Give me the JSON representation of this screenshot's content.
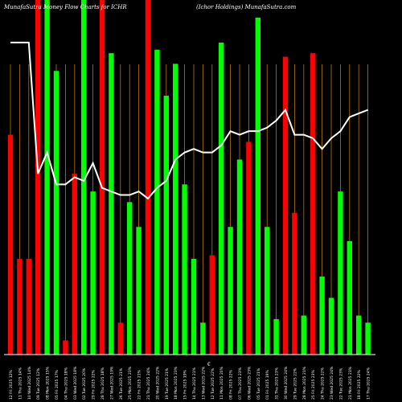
{
  "header": {
    "title": "MunafaSutra  Money Flow  Charts for ICHR",
    "subtitle": "(Ichor Holdings) MunafaSutra.com"
  },
  "chart_data": {
    "type": "bar",
    "title": "MunafaSutra  Money Flow  Charts for ICHR",
    "subtitle": "(Ichor Holdings) MunafaSutra.com",
    "xlabel": "",
    "ylabel": "",
    "ylim": [
      0,
      100
    ],
    "grid": "vertical",
    "colors": {
      "background": "#000000",
      "green": "#00ff00",
      "red": "#ff0000",
      "line": "#ffffff",
      "grid": "#b8760a",
      "baseline": "#ffffff"
    },
    "categories": [
      "12 Fri 2025",
      "11 Thu 2025",
      "10 Wed 2025",
      "09 Tue 2025",
      "08 Mon 2025",
      "05 Fri 2025",
      "04 Thu 2025",
      "03 Wed 2025",
      "02 Tue 2025",
      "29 Fri 2025",
      "28 Thu 2025",
      "27 Wed 2025",
      "26 Tue 2025",
      "25 Mon 2025",
      "22 Fri 2025",
      "21 Thu 2025",
      "20 Wed 2025",
      "19 Tue 2025",
      "18 Mon 2025",
      "15 Fri 2025",
      "14 Thu 2025",
      "13 Wed 2025",
      "12 Tue 2025",
      "11 Mon 2025",
      "08 Fri 2025",
      "07 Thu 2025",
      "06 Wed 2025",
      "05 Tue 2025",
      "01 Fri 2025",
      "31 Thu 2025",
      "30 Wed 2025",
      "29 Tue 2025",
      "28 Mon 2025",
      "25 Fri 2025",
      "24 Thu 2025",
      "23 Wed 2025",
      "22 Tue 2025",
      "21 Mon 2025",
      "18 Fri 2025",
      "17 Thu 2025"
    ],
    "values": [
      62,
      27,
      27,
      100,
      100,
      80,
      4,
      51,
      100,
      46,
      100,
      85,
      9,
      43,
      36,
      100,
      86,
      73,
      82,
      48,
      27,
      9,
      28,
      88,
      36,
      55,
      60,
      95,
      36,
      10,
      84,
      40,
      11,
      85,
      22,
      16,
      46,
      32,
      11,
      9
    ],
    "bar_colors": [
      "red",
      "red",
      "red",
      "red",
      "green",
      "green",
      "red",
      "red",
      "green",
      "green",
      "red",
      "green",
      "red",
      "green",
      "green",
      "red",
      "green",
      "green",
      "green",
      "green",
      "green",
      "green",
      "red",
      "green",
      "green",
      "green",
      "red",
      "green",
      "green",
      "green",
      "red",
      "red",
      "green",
      "red",
      "green",
      "green",
      "green",
      "green",
      "green",
      "green"
    ],
    "flow_line": [
      88,
      88,
      88,
      51,
      57,
      48,
      48,
      50,
      49,
      54,
      47,
      46,
      45,
      45,
      46,
      44,
      47,
      49,
      55,
      57,
      58,
      57,
      57,
      59,
      63,
      62,
      63,
      63,
      64,
      66,
      69,
      62,
      62,
      61,
      58,
      61,
      63,
      67,
      68,
      69
    ],
    "x_labels": [
      "12 Fri 2025 12%",
      "11 Thu 2025 14%",
      "10 Wed 2025 14%",
      "09 Tue 2025 12%",
      "08 Mon 2025 15%",
      "05 Fri 2025 17%",
      "04 Thu 2025 18%",
      "03 Wed 2025 18%",
      "02 Tue 2025 20%",
      "29 Fri 2025 22%",
      "28 Thu 2025 18%",
      "27 Wed 2025 19%",
      "26 Tue 2025 21%",
      "25 Mon 2025 23%",
      "22 Fri 2025 21%",
      "21 Thu 2025 24%",
      "20 Wed 2025 22%",
      "19 Tue 2025 21%",
      "18 Mon 2025 23%",
      "15 Fri 2025 19%",
      "14 Thu 2025 21%",
      "13 Wed 2025 22%",
      "12 Tue 2025 22%",
      "11 Mon 2025 20%",
      "08 Fri 2025 22%",
      "07 Thu 2025 23%",
      "06 Wed 2025 23%",
      "05 Tue 2025 21%",
      "01 Fri 2025 19%",
      "31 Thu 2025 23%",
      "30 Wed 2025 24%",
      "29 Tue 2025 22%",
      "28 Mon 2025 21%",
      "25 Fri 2025 23%",
      "24 Thu 2025 22%",
      "23 Wed 2025 24%",
      "22 Tue 2025 23%",
      "21 Mon 2025 21%",
      "18 Fri 2025 22%",
      "17 Thu 2025 24%"
    ],
    "center_marker": "€"
  }
}
